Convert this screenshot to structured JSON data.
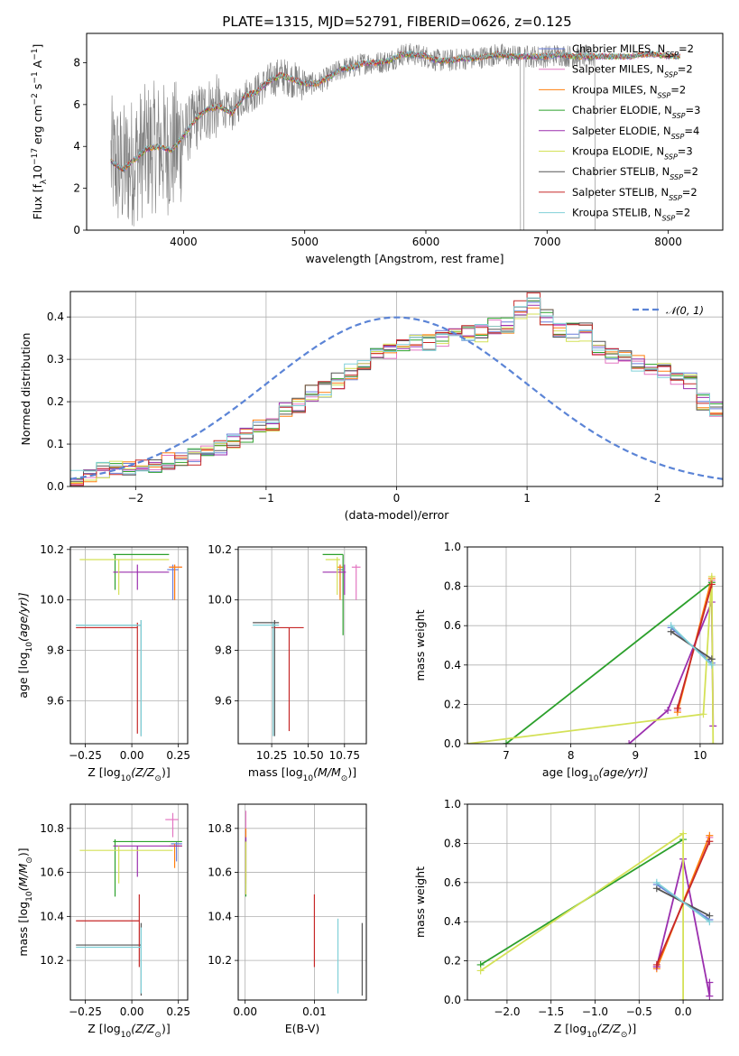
{
  "figure": {
    "title": "PLATE=1315, MJD=52791, FIBERID=0626, z=0.125",
    "models": [
      {
        "name": "Chabrier MILES, N",
        "sub": "SSP",
        "tail": "=2",
        "color": "#6a7fdb"
      },
      {
        "name": "Salpeter MILES, N",
        "sub": "SSP",
        "tail": "=2",
        "color": "#e377c2"
      },
      {
        "name": "Kroupa MILES, N",
        "sub": "SSP",
        "tail": "=2",
        "color": "#ff7f0e"
      },
      {
        "name": "Chabrier ELODIE, N",
        "sub": "SSP",
        "tail": "=3",
        "color": "#2ca02c"
      },
      {
        "name": "Salpeter ELODIE, N",
        "sub": "SSP",
        "tail": "=4",
        "color": "#9b2fae"
      },
      {
        "name": "Kroupa ELODIE, N",
        "sub": "SSP",
        "tail": "=3",
        "color": "#d4e157"
      },
      {
        "name": "Chabrier STELIB, N",
        "sub": "SSP",
        "tail": "=2",
        "color": "#555555"
      },
      {
        "name": "Salpeter STELIB, N",
        "sub": "SSP",
        "tail": "=2",
        "color": "#c62828"
      },
      {
        "name": "Kroupa STELIB, N",
        "sub": "SSP",
        "tail": "=2",
        "color": "#80d0d8"
      }
    ],
    "data_color": "#7f7f7f"
  },
  "chart_data": [
    {
      "id": "spectrum",
      "type": "line",
      "xlabel": "wavelength [Angstrom, rest frame]",
      "ylabel_parts": [
        "Flux [f",
        "λ",
        "10",
        "−17",
        " erg cm",
        "−2",
        " s",
        "−1",
        " A",
        "−1",
        "]"
      ],
      "xlim": [
        3200,
        8450
      ],
      "ylim": [
        0,
        9.4
      ],
      "xticks": [
        4000,
        5000,
        6000,
        7000,
        8000
      ],
      "yticks": [
        0,
        2,
        4,
        6,
        8
      ],
      "grid": false,
      "legend": "upper-right",
      "continuum": {
        "x": [
          3400,
          3500,
          3600,
          3700,
          3800,
          3900,
          4000,
          4100,
          4200,
          4300,
          4400,
          4500,
          4600,
          4700,
          4800,
          4900,
          5000,
          5100,
          5200,
          5300,
          5400,
          5500,
          5600,
          5700,
          5800,
          5900,
          6000,
          6100,
          6200,
          6300,
          6400,
          6500,
          6600,
          6700,
          6800,
          6900,
          7000,
          7100,
          7200,
          7300,
          7400,
          7500,
          7600,
          7700,
          7800,
          7900,
          8000,
          8100
        ],
        "y": [
          3.3,
          2.9,
          3.4,
          3.9,
          4.0,
          3.8,
          4.5,
          5.3,
          5.8,
          5.9,
          5.6,
          6.4,
          6.6,
          7.1,
          7.4,
          7.2,
          7.0,
          7.0,
          7.3,
          7.7,
          7.8,
          8.0,
          8.0,
          8.1,
          8.4,
          8.4,
          8.3,
          8.1,
          8.1,
          8.2,
          8.2,
          8.3,
          8.4,
          8.3,
          8.3,
          8.3,
          8.3,
          8.4,
          8.3,
          8.3,
          8.3,
          8.3,
          8.3,
          8.3,
          8.4,
          8.4,
          8.3,
          8.3
        ]
      },
      "data_extent": [
        3400,
        7400
      ]
    },
    {
      "id": "residuals",
      "type": "line",
      "xlabel": "(data-model)/error",
      "ylabel": "Normed distribution",
      "xlim": [
        -2.5,
        2.5
      ],
      "ylim": [
        0,
        0.46
      ],
      "xticks": [
        -2,
        -1,
        0,
        1,
        2
      ],
      "yticks": [
        0.0,
        0.1,
        0.2,
        0.3,
        0.4
      ],
      "grid": true,
      "legend": "upper-right",
      "gaussian": {
        "label": "𝒩(0, 1)",
        "color": "#5b84d6"
      },
      "bins": {
        "edges_start": -2.5,
        "width": 0.1,
        "values": [
          0.02,
          0.03,
          0.04,
          0.04,
          0.04,
          0.05,
          0.05,
          0.06,
          0.06,
          0.07,
          0.08,
          0.09,
          0.11,
          0.12,
          0.14,
          0.15,
          0.18,
          0.19,
          0.22,
          0.23,
          0.25,
          0.27,
          0.29,
          0.31,
          0.32,
          0.33,
          0.34,
          0.34,
          0.35,
          0.36,
          0.36,
          0.37,
          0.38,
          0.38,
          0.42,
          0.44,
          0.4,
          0.37,
          0.37,
          0.38,
          0.33,
          0.31,
          0.3,
          0.29,
          0.28,
          0.27,
          0.26,
          0.25,
          0.2,
          0.18,
          0.17,
          0.15,
          0.13,
          0.12,
          0.1,
          0.09,
          0.08,
          0.07,
          0.07,
          0.06,
          0.06,
          0.05,
          0.05,
          0.04,
          0.04,
          0.03,
          0.03,
          0.03,
          0.03,
          0.02,
          0.02,
          0.02,
          0.02,
          0.02,
          0.02,
          0.02,
          0.02,
          0.02,
          0.02,
          0.02
        ]
      }
    },
    {
      "id": "age-vs-Z",
      "type": "scatter",
      "xlabel_parts": [
        "Z [log",
        "10",
        "(Z/Z",
        "⊙",
        ")]"
      ],
      "ylabel_parts": [
        "age  [log",
        "10",
        "(age/yr)]"
      ],
      "xlim": [
        -0.33,
        0.3
      ],
      "ylim": [
        9.43,
        10.21
      ],
      "xticks": [
        -0.25,
        0.0,
        0.25
      ],
      "xtick_labels": [
        "−0.25",
        "0.00",
        "0.25"
      ],
      "yticks": [
        9.6,
        9.8,
        10.0,
        10.2
      ],
      "ytick_labels": [
        "9.6",
        "9.8",
        "10.0",
        "10.2"
      ],
      "grid": true,
      "points": [
        {
          "m": 0,
          "x": 0.22,
          "y": 10.12,
          "xlo": 0.19,
          "xhi": 0.25,
          "ylo": 10.0,
          "yhi": 10.14
        },
        {
          "m": 1,
          "x": 0.23,
          "y": 10.13,
          "xlo": 0.2,
          "xhi": 0.27,
          "ylo": 10.0,
          "yhi": 10.14
        },
        {
          "m": 2,
          "x": 0.23,
          "y": 10.13,
          "xlo": 0.2,
          "xhi": 0.27,
          "ylo": 10.0,
          "yhi": 10.14
        },
        {
          "m": 3,
          "x": -0.09,
          "y": 10.18,
          "xlo": -0.1,
          "xhi": 0.2,
          "ylo": 10.04,
          "yhi": 10.18
        },
        {
          "m": 4,
          "x": 0.03,
          "y": 10.11,
          "xlo": -0.1,
          "xhi": 0.2,
          "ylo": 10.04,
          "yhi": 10.14
        },
        {
          "m": 5,
          "x": -0.07,
          "y": 10.16,
          "xlo": -0.28,
          "xhi": 0.2,
          "ylo": 10.02,
          "yhi": 10.16
        },
        {
          "m": 6,
          "x": 0.05,
          "y": 9.9,
          "xlo": -0.3,
          "xhi": 0.05,
          "ylo": 9.46,
          "yhi": 9.92
        },
        {
          "m": 7,
          "x": 0.03,
          "y": 9.89,
          "xlo": -0.3,
          "xhi": 0.03,
          "ylo": 9.47,
          "yhi": 9.91
        },
        {
          "m": 8,
          "x": 0.05,
          "y": 9.9,
          "xlo": -0.3,
          "xhi": 0.05,
          "ylo": 9.46,
          "yhi": 9.92
        }
      ]
    },
    {
      "id": "age-vs-mass",
      "type": "scatter",
      "xlabel_parts": [
        "mass [log",
        "10",
        "(M/M",
        "⊙",
        ")]"
      ],
      "xlim": [
        10.02,
        10.9
      ],
      "ylim": [
        9.43,
        10.21
      ],
      "xticks": [
        10.25,
        10.5,
        10.75
      ],
      "xtick_labels": [
        "10.25",
        "10.50",
        "10.75"
      ],
      "yticks": [
        9.6,
        9.8,
        10.0,
        10.2
      ],
      "ytick_labels": [
        "9.6",
        "9.8",
        "10.0",
        "10.2"
      ],
      "grid": true,
      "points": [
        {
          "m": 0,
          "x": 10.72,
          "y": 10.12,
          "xlo": 10.7,
          "xhi": 10.74,
          "ylo": 10.01,
          "yhi": 10.14
        },
        {
          "m": 1,
          "x": 10.83,
          "y": 10.13,
          "xlo": 10.8,
          "xhi": 10.86,
          "ylo": 10.0,
          "yhi": 10.14
        },
        {
          "m": 2,
          "x": 10.72,
          "y": 10.13,
          "xlo": 10.7,
          "xhi": 10.74,
          "ylo": 10.0,
          "yhi": 10.14
        },
        {
          "m": 3,
          "x": 10.74,
          "y": 10.18,
          "xlo": 10.6,
          "xhi": 10.74,
          "ylo": 9.86,
          "yhi": 10.18
        },
        {
          "m": 4,
          "x": 10.75,
          "y": 10.11,
          "xlo": 10.6,
          "xhi": 10.76,
          "ylo": 10.02,
          "yhi": 10.14
        },
        {
          "m": 5,
          "x": 10.7,
          "y": 10.16,
          "xlo": 10.62,
          "xhi": 10.72,
          "ylo": 10.02,
          "yhi": 10.17
        },
        {
          "m": 6,
          "x": 10.27,
          "y": 9.91,
          "xlo": 10.12,
          "xhi": 10.3,
          "ylo": 9.46,
          "yhi": 9.92
        },
        {
          "m": 7,
          "x": 10.37,
          "y": 9.89,
          "xlo": 10.25,
          "xhi": 10.47,
          "ylo": 9.48,
          "yhi": 9.89
        },
        {
          "m": 8,
          "x": 10.26,
          "y": 9.9,
          "xlo": 10.12,
          "xhi": 10.3,
          "ylo": 9.46,
          "yhi": 9.91
        }
      ]
    },
    {
      "id": "weight-vs-age",
      "type": "line",
      "xlabel_parts": [
        "age  [log",
        "10",
        "(age/yr)]"
      ],
      "ylabel": "mass weight",
      "xlim": [
        6.4,
        10.35
      ],
      "ylim": [
        0,
        1.0
      ],
      "xticks": [
        7,
        8,
        9,
        10
      ],
      "xtick_labels": [
        "7",
        "8",
        "9",
        "10"
      ],
      "yticks": [
        0.0,
        0.2,
        0.4,
        0.6,
        0.8,
        1.0
      ],
      "ytick_labels": [
        "0.0",
        "0.2",
        "0.4",
        "0.6",
        "0.8",
        "1.0"
      ],
      "grid": true,
      "series": [
        {
          "m": 0,
          "x": [
            9.55,
            10.18
          ],
          "y": [
            0.59,
            0.41
          ]
        },
        {
          "m": 1,
          "x": [
            9.65,
            10.18
          ],
          "y": [
            0.17,
            0.83
          ]
        },
        {
          "m": 2,
          "x": [
            9.65,
            10.18
          ],
          "y": [
            0.16,
            0.84
          ]
        },
        {
          "m": 3,
          "x": [
            6.4,
            7.0,
            10.18
          ],
          "y": [
            -0.02,
            0.0,
            0.82
          ]
        },
        {
          "m": 4,
          "x": [
            8.9,
            9.5,
            10.18,
            10.2
          ],
          "y": [
            0.0,
            0.17,
            0.72,
            0.09
          ]
        },
        {
          "m": 5,
          "x": [
            6.4,
            10.05,
            10.18,
            10.2
          ],
          "y": [
            0.0,
            0.15,
            0.85,
            0.0
          ]
        },
        {
          "m": 6,
          "x": [
            9.55,
            10.18
          ],
          "y": [
            0.57,
            0.43
          ]
        },
        {
          "m": 7,
          "x": [
            9.65,
            10.18
          ],
          "y": [
            0.18,
            0.81
          ]
        },
        {
          "m": 8,
          "x": [
            9.55,
            10.18
          ],
          "y": [
            0.6,
            0.4
          ]
        }
      ]
    },
    {
      "id": "mass-vs-Z",
      "type": "scatter",
      "xlabel_parts": [
        "Z [log",
        "10",
        "(Z/Z",
        "⊙",
        ")]"
      ],
      "ylabel_parts": [
        "mass [log",
        "10",
        "(M/M",
        "⊙",
        ")]"
      ],
      "xlim": [
        -0.33,
        0.3
      ],
      "ylim": [
        10.02,
        10.91
      ],
      "xticks": [
        -0.25,
        0.0,
        0.25
      ],
      "xtick_labels": [
        "−0.25",
        "0.00",
        "0.25"
      ],
      "yticks": [
        10.2,
        10.4,
        10.6,
        10.8
      ],
      "ytick_labels": [
        "10.2",
        "10.4",
        "10.6",
        "10.8"
      ],
      "grid": true,
      "points": [
        {
          "m": 0,
          "x": 0.24,
          "y": 10.73,
          "xlo": 0.21,
          "xhi": 0.27,
          "ylo": 10.65,
          "yhi": 10.74
        },
        {
          "m": 1,
          "x": 0.22,
          "y": 10.84,
          "xlo": 0.18,
          "xhi": 0.25,
          "ylo": 10.76,
          "yhi": 10.87
        },
        {
          "m": 2,
          "x": 0.23,
          "y": 10.72,
          "xlo": 0.2,
          "xhi": 0.27,
          "ylo": 10.62,
          "yhi": 10.73
        },
        {
          "m": 3,
          "x": -0.09,
          "y": 10.74,
          "xlo": -0.1,
          "xhi": 0.27,
          "ylo": 10.49,
          "yhi": 10.75
        },
        {
          "m": 4,
          "x": 0.03,
          "y": 10.72,
          "xlo": -0.1,
          "xhi": 0.27,
          "ylo": 10.58,
          "yhi": 10.72
        },
        {
          "m": 5,
          "x": -0.07,
          "y": 10.7,
          "xlo": -0.28,
          "xhi": 0.22,
          "ylo": 10.55,
          "yhi": 10.72
        },
        {
          "m": 6,
          "x": 0.05,
          "y": 10.27,
          "xlo": -0.3,
          "xhi": 0.05,
          "ylo": 10.04,
          "yhi": 10.37
        },
        {
          "m": 7,
          "x": 0.04,
          "y": 10.38,
          "xlo": -0.3,
          "xhi": 0.04,
          "ylo": 10.17,
          "yhi": 10.5
        },
        {
          "m": 8,
          "x": 0.05,
          "y": 10.26,
          "xlo": -0.3,
          "xhi": 0.05,
          "ylo": 10.05,
          "yhi": 10.35
        }
      ]
    },
    {
      "id": "mass-vs-ebv",
      "type": "scatter",
      "xlabel": "E(B-V)",
      "xlim": [
        -0.001,
        0.0175
      ],
      "ylim": [
        10.02,
        10.91
      ],
      "xticks": [
        0.0,
        0.01
      ],
      "xtick_labels": [
        "0.00",
        "0.01"
      ],
      "yticks": [
        10.2,
        10.4,
        10.6,
        10.8
      ],
      "ytick_labels": [
        "10.2",
        "10.4",
        "10.6",
        "10.8"
      ],
      "grid": true,
      "points": [
        {
          "m": 0,
          "x": 0.0001,
          "y": 10.73,
          "ylo": 10.52,
          "yhi": 10.79
        },
        {
          "m": 1,
          "x": 0.0001,
          "y": 10.84,
          "ylo": 10.58,
          "yhi": 10.88
        },
        {
          "m": 2,
          "x": 0.0001,
          "y": 10.72,
          "ylo": 10.55,
          "yhi": 10.8
        },
        {
          "m": 3,
          "x": 0.0001,
          "y": 10.74,
          "ylo": 10.49,
          "yhi": 10.75
        },
        {
          "m": 4,
          "x": 0.0001,
          "y": 10.72,
          "ylo": 10.5,
          "yhi": 10.76
        },
        {
          "m": 5,
          "x": 0.0001,
          "y": 10.7,
          "ylo": 10.5,
          "yhi": 10.74
        },
        {
          "m": 6,
          "x": 0.0169,
          "y": 10.27,
          "ylo": 10.04,
          "yhi": 10.37
        },
        {
          "m": 7,
          "x": 0.01,
          "y": 10.38,
          "ylo": 10.17,
          "yhi": 10.5
        },
        {
          "m": 8,
          "x": 0.0134,
          "y": 10.26,
          "ylo": 10.05,
          "yhi": 10.39
        }
      ]
    },
    {
      "id": "weight-vs-Z",
      "type": "line",
      "xlabel_parts": [
        "Z [log",
        "10",
        "(Z/Z",
        "⊙",
        ")]"
      ],
      "ylabel": "mass weight",
      "xlim": [
        -2.45,
        0.45
      ],
      "ylim": [
        0,
        1.0
      ],
      "xticks": [
        -2.0,
        -1.5,
        -1.0,
        -0.5,
        0.0
      ],
      "xtick_labels": [
        "−2.0",
        "−1.5",
        "−1.0",
        "−0.5",
        "0.0"
      ],
      "yticks": [
        0.0,
        0.2,
        0.4,
        0.6,
        0.8,
        1.0
      ],
      "ytick_labels": [
        "0.0",
        "0.2",
        "0.4",
        "0.6",
        "0.8",
        "1.0"
      ],
      "grid": true,
      "series": [
        {
          "m": 0,
          "x": [
            -0.3,
            0.3
          ],
          "y": [
            0.59,
            0.41
          ]
        },
        {
          "m": 1,
          "x": [
            -0.3,
            0.3
          ],
          "y": [
            0.17,
            0.83
          ]
        },
        {
          "m": 2,
          "x": [
            -0.3,
            0.3
          ],
          "y": [
            0.16,
            0.84
          ]
        },
        {
          "m": 3,
          "x": [
            -2.3,
            0.0
          ],
          "y": [
            0.18,
            0.82
          ]
        },
        {
          "m": 4,
          "x": [
            -0.3,
            0.0,
            0.3,
            0.3
          ],
          "y": [
            0.17,
            0.72,
            0.02,
            0.09
          ]
        },
        {
          "m": 5,
          "x": [
            -2.3,
            0.0,
            0.0
          ],
          "y": [
            0.15,
            0.85,
            0.0
          ]
        },
        {
          "m": 6,
          "x": [
            -0.3,
            0.3
          ],
          "y": [
            0.57,
            0.43
          ]
        },
        {
          "m": 7,
          "x": [
            -0.3,
            0.3
          ],
          "y": [
            0.18,
            0.81
          ]
        },
        {
          "m": 8,
          "x": [
            -0.3,
            0.3
          ],
          "y": [
            0.6,
            0.4
          ]
        }
      ]
    }
  ]
}
